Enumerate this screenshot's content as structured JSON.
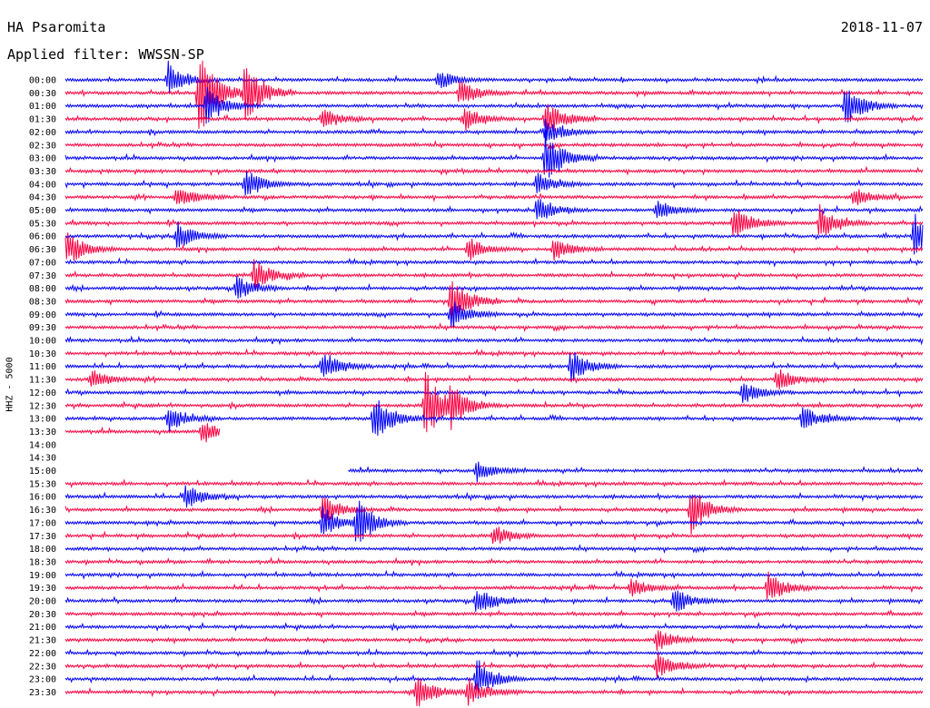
{
  "header": {
    "station": "HA Psaromita",
    "date": "2018-11-07",
    "filter": "Applied filter: WWSSN-SP"
  },
  "chart_data": {
    "type": "line",
    "ylabel": "HHZ - 5000",
    "row_labels": [
      "00:00",
      "00:30",
      "01:00",
      "01:30",
      "02:00",
      "02:30",
      "03:00",
      "03:30",
      "04:00",
      "04:30",
      "05:00",
      "05:30",
      "06:00",
      "06:30",
      "07:00",
      "07:30",
      "08:00",
      "08:30",
      "09:00",
      "09:30",
      "10:00",
      "10:30",
      "11:00",
      "11:30",
      "12:00",
      "12:30",
      "13:00",
      "13:30",
      "14:00",
      "14:30",
      "15:00",
      "15:30",
      "16:00",
      "16:30",
      "17:00",
      "17:30",
      "18:00",
      "18:30",
      "19:00",
      "19:30",
      "20:00",
      "20:30",
      "21:00",
      "21:30",
      "22:00",
      "22:30",
      "23:00",
      "23:30"
    ],
    "colors": {
      "even": "#0000ff",
      "odd": "#ff0040"
    },
    "gap_rows": [
      28,
      29
    ],
    "partial_rows": [
      {
        "row": 30,
        "start_fraction": 0.33
      },
      {
        "row": 27,
        "end_fraction": 0.18
      }
    ],
    "events": [
      {
        "row": 0,
        "pos": 0.12,
        "amp": 2.2
      },
      {
        "row": 0,
        "pos": 0.435,
        "amp": 1.3
      },
      {
        "row": 1,
        "pos": 0.156,
        "amp": 6.0
      },
      {
        "row": 1,
        "pos": 0.21,
        "amp": 4.0
      },
      {
        "row": 1,
        "pos": 0.46,
        "amp": 1.5
      },
      {
        "row": 2,
        "pos": 0.165,
        "amp": 2.5
      },
      {
        "row": 2,
        "pos": 0.91,
        "amp": 2.8
      },
      {
        "row": 3,
        "pos": 0.3,
        "amp": 1.3
      },
      {
        "row": 3,
        "pos": 0.465,
        "amp": 1.4
      },
      {
        "row": 3,
        "pos": 0.56,
        "amp": 2.6
      },
      {
        "row": 4,
        "pos": 0.56,
        "amp": 1.6
      },
      {
        "row": 6,
        "pos": 0.56,
        "amp": 3.5
      },
      {
        "row": 8,
        "pos": 0.21,
        "amp": 2.0
      },
      {
        "row": 8,
        "pos": 0.55,
        "amp": 1.4
      },
      {
        "row": 9,
        "pos": 0.13,
        "amp": 1.6
      },
      {
        "row": 9,
        "pos": 0.92,
        "amp": 1.2
      },
      {
        "row": 10,
        "pos": 0.55,
        "amp": 1.6
      },
      {
        "row": 10,
        "pos": 0.69,
        "amp": 1.3
      },
      {
        "row": 11,
        "pos": 0.78,
        "amp": 2.3
      },
      {
        "row": 11,
        "pos": 0.88,
        "amp": 2.0
      },
      {
        "row": 12,
        "pos": 0.13,
        "amp": 1.8
      },
      {
        "row": 12,
        "pos": 0.99,
        "amp": 3.0
      },
      {
        "row": 13,
        "pos": 0.0,
        "amp": 2.5
      },
      {
        "row": 13,
        "pos": 0.47,
        "amp": 1.5
      },
      {
        "row": 13,
        "pos": 0.57,
        "amp": 1.5
      },
      {
        "row": 15,
        "pos": 0.22,
        "amp": 2.0
      },
      {
        "row": 16,
        "pos": 0.2,
        "amp": 1.4
      },
      {
        "row": 17,
        "pos": 0.45,
        "amp": 3.4
      },
      {
        "row": 18,
        "pos": 0.45,
        "amp": 2.0
      },
      {
        "row": 22,
        "pos": 0.3,
        "amp": 2.0
      },
      {
        "row": 22,
        "pos": 0.59,
        "amp": 2.2
      },
      {
        "row": 23,
        "pos": 0.03,
        "amp": 1.3
      },
      {
        "row": 23,
        "pos": 0.83,
        "amp": 1.5
      },
      {
        "row": 24,
        "pos": 0.79,
        "amp": 1.6
      },
      {
        "row": 25,
        "pos": 0.42,
        "amp": 4.5
      },
      {
        "row": 25,
        "pos": 0.45,
        "amp": 2.5
      },
      {
        "row": 26,
        "pos": 0.12,
        "amp": 1.6
      },
      {
        "row": 26,
        "pos": 0.36,
        "amp": 3.0
      },
      {
        "row": 26,
        "pos": 0.86,
        "amp": 1.6
      },
      {
        "row": 27,
        "pos": 0.16,
        "amp": 1.6
      },
      {
        "row": 30,
        "pos": 0.48,
        "amp": 1.3
      },
      {
        "row": 32,
        "pos": 0.14,
        "amp": 1.6
      },
      {
        "row": 33,
        "pos": 0.3,
        "amp": 2.0
      },
      {
        "row": 33,
        "pos": 0.73,
        "amp": 3.0
      },
      {
        "row": 34,
        "pos": 0.3,
        "amp": 2.2
      },
      {
        "row": 34,
        "pos": 0.34,
        "amp": 3.0
      },
      {
        "row": 35,
        "pos": 0.5,
        "amp": 1.3
      },
      {
        "row": 39,
        "pos": 0.66,
        "amp": 1.2
      },
      {
        "row": 39,
        "pos": 0.82,
        "amp": 2.0
      },
      {
        "row": 40,
        "pos": 0.48,
        "amp": 1.8
      },
      {
        "row": 40,
        "pos": 0.71,
        "amp": 1.6
      },
      {
        "row": 43,
        "pos": 0.69,
        "amp": 1.3
      },
      {
        "row": 45,
        "pos": 0.69,
        "amp": 1.8
      },
      {
        "row": 46,
        "pos": 0.48,
        "amp": 2.6
      },
      {
        "row": 47,
        "pos": 0.41,
        "amp": 2.2
      },
      {
        "row": 47,
        "pos": 0.47,
        "amp": 1.8
      }
    ]
  }
}
